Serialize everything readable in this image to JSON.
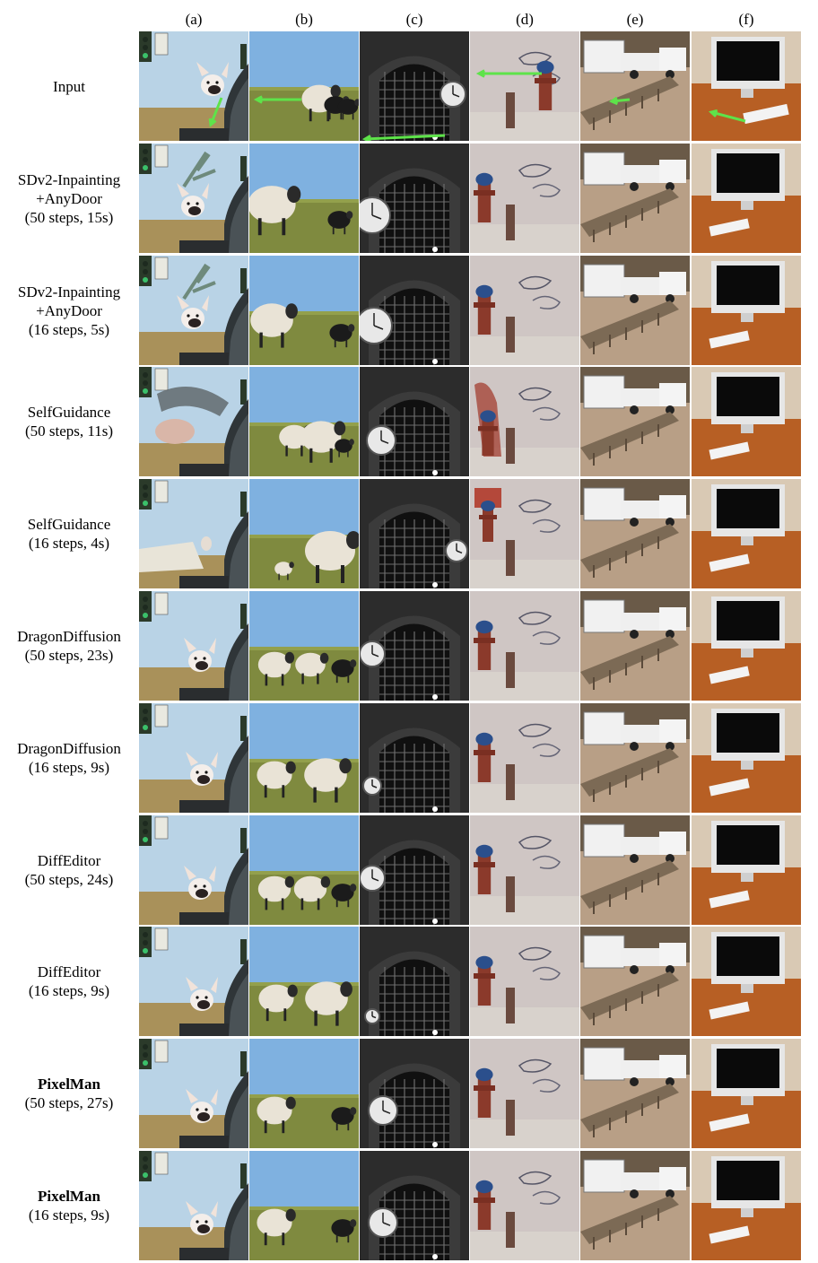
{
  "columns": [
    "(a)",
    "(b)",
    "(c)",
    "(d)",
    "(e)",
    "(f)"
  ],
  "rows": [
    {
      "lines": [
        "Input"
      ],
      "bold": false
    },
    {
      "lines": [
        "SDv2-Inpainting",
        "+AnyDoor",
        "(50 steps, 15s)"
      ],
      "bold": false
    },
    {
      "lines": [
        "SDv2-Inpainting",
        "+AnyDoor",
        "(16 steps, 5s)"
      ],
      "bold": false
    },
    {
      "lines": [
        "SelfGuidance",
        "(50 steps, 11s)"
      ],
      "bold": false
    },
    {
      "lines": [
        "SelfGuidance",
        "(16 steps, 4s)"
      ],
      "bold": false
    },
    {
      "lines": [
        "DragonDiffusion",
        "(50 steps, 23s)"
      ],
      "bold": false
    },
    {
      "lines": [
        "DragonDiffusion",
        "(16 steps, 9s)"
      ],
      "bold": false
    },
    {
      "lines": [
        "DiffEditor",
        "(50 steps, 24s)"
      ],
      "bold": false
    },
    {
      "lines": [
        "DiffEditor",
        "(16 steps, 9s)"
      ],
      "bold": false
    },
    {
      "lines": [
        "PixelMan",
        "(50 steps, 27s)"
      ],
      "bold": true
    },
    {
      "lines": [
        "PixelMan",
        "(16 steps, 9s)"
      ],
      "bold": true
    }
  ],
  "scenes": [
    "dog-in-car",
    "sheep-field",
    "station-clock",
    "fire-hydrant",
    "trailer-bench",
    "desktop-computer"
  ],
  "colors": {
    "arrow": "#5ee34a",
    "background": "#ffffff"
  }
}
